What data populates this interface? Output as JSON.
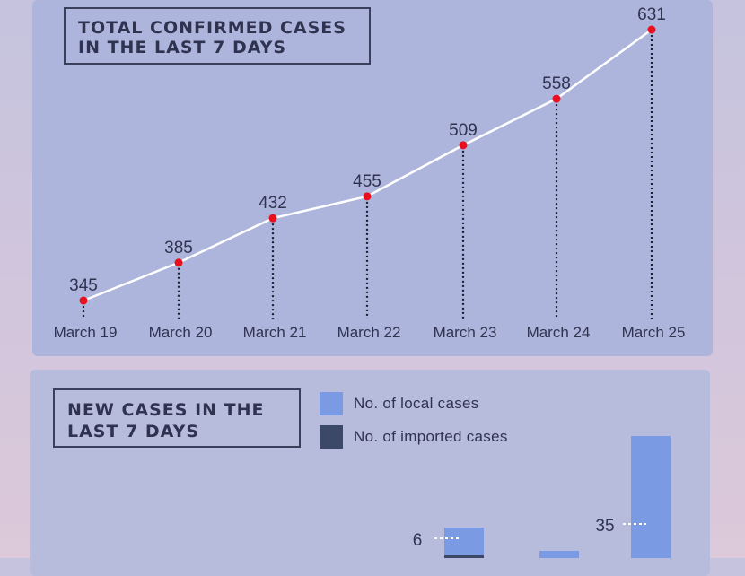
{
  "line_title_lines": [
    "TOTAL CONFIRMED CASES",
    "IN THE LAST 7 DAYS"
  ],
  "bar_title_lines": [
    "NEW CASES IN THE",
    "LAST 7 DAYS"
  ],
  "legend": [
    {
      "label": "No. of local cases",
      "color": "#7a9ae3"
    },
    {
      "label": "No. of imported cases",
      "color": "#3c4868"
    }
  ],
  "chart_data": [
    {
      "type": "line",
      "title": "TOTAL CONFIRMED CASES IN THE LAST 7 DAYS",
      "categories": [
        "March 19",
        "March 20",
        "March 21",
        "March 22",
        "March 23",
        "March 24",
        "March 25"
      ],
      "series": [
        {
          "values": [
            345,
            385,
            432,
            455,
            509,
            558,
            631
          ],
          "color": "#ffffff",
          "marker_color": "#e8101e"
        }
      ],
      "data_labels": true,
      "grid": false
    },
    {
      "type": "bar",
      "title": "NEW CASES IN THE LAST 7 DAYS",
      "stacked": true,
      "series": [
        {
          "name": "No. of local cases",
          "color": "#7a9ae3"
        },
        {
          "name": "No. of imported cases",
          "color": "#3c4868"
        }
      ],
      "visible_data_labels": [
        {
          "text": "6",
          "bar_index": 4
        },
        {
          "text": "35",
          "bar_index": 6
        }
      ],
      "legend_position": "top"
    }
  ]
}
